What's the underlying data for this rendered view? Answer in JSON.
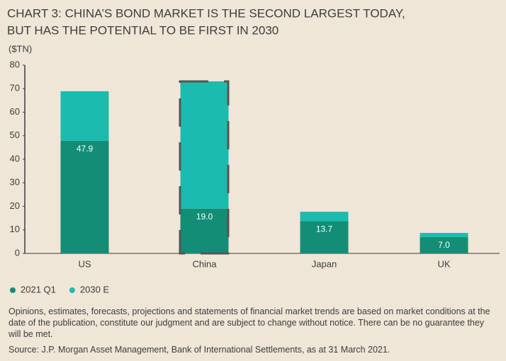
{
  "chart_data": {
    "type": "stacked_bar",
    "title": [
      "CHART 3: CHINA’S BOND MARKET IS THE SECOND LARGEST TODAY,",
      "BUT HAS THE POTENTIAL TO BE FIRST IN 2030"
    ],
    "y_axis_label": "($TN)",
    "categories": [
      "US",
      "China",
      "Japan",
      "UK"
    ],
    "series": [
      {
        "name": "2021 Q1",
        "color": "#138d75",
        "values": [
          47.9,
          19.0,
          13.7,
          7.0
        ],
        "value_labels": [
          "47.9",
          "19.0",
          "13.7",
          "7.0"
        ]
      },
      {
        "name": "2030 E",
        "color": "#1bbbb0",
        "values": [
          21.0,
          54.1,
          4.0,
          1.7
        ]
      }
    ],
    "ylim": [
      0,
      80
    ],
    "yticks": [
      0,
      10,
      20,
      30,
      40,
      50,
      60,
      70,
      80
    ],
    "grid": false,
    "notes": "Opinions, estimates, forecasts, projections and statements of financial market trends are based on market conditions at the date of the publication, constitute our judgment and are subject to change without notice. There can be no guarantee they will be met.",
    "source": "Source: J.P. Morgan Asset Management, Bank of International Settlements, as at 31 March 2021."
  }
}
